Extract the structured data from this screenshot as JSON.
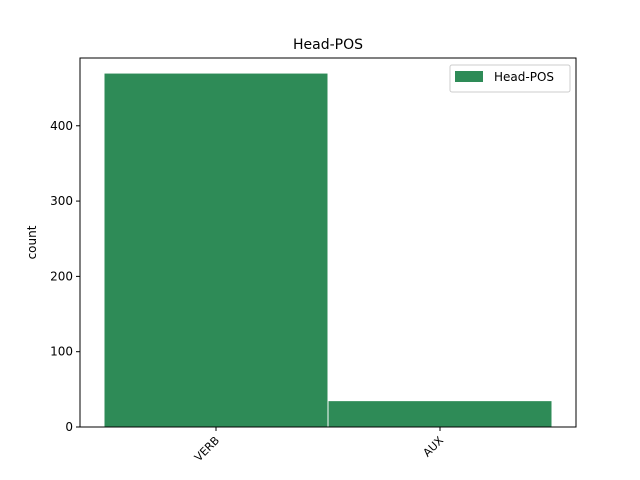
{
  "chart_data": {
    "type": "bar",
    "title": "Head-POS",
    "xlabel": "",
    "ylabel": "count",
    "categories": [
      "VERB",
      "AUX"
    ],
    "series": [
      {
        "name": "Head-POS",
        "values": [
          470,
          35
        ]
      }
    ],
    "ylim": [
      0,
      490
    ],
    "yticks": [
      0,
      100,
      200,
      300,
      400
    ],
    "grid": false,
    "legend": "top-right",
    "colors": {
      "bar": "#2e8b57",
      "bar_edge": "#ffffff",
      "axis": "#000000"
    }
  }
}
